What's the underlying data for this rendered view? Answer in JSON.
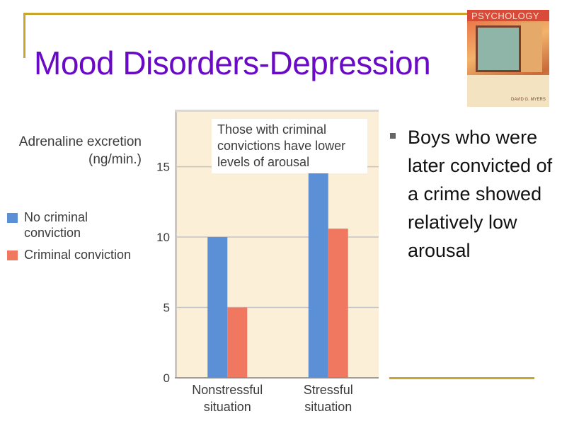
{
  "slide": {
    "title": "Mood Disorders-Depression",
    "book_cover_title": "PSYCHOLOGY",
    "book_cover_author": "DAVID G. MYERS",
    "bullet_text": "Boys who were later convicted of a crime showed relatively low arousal",
    "colors": {
      "title": "#6a0ac7",
      "frame": "#c9a72a"
    }
  },
  "chart_data": {
    "type": "bar",
    "title": "",
    "ylabel": "Adrenaline excretion (ng/min.)",
    "xlabel": "",
    "categories": [
      "Nonstressful situation",
      "Stressful situation"
    ],
    "series": [
      {
        "name": "No criminal conviction",
        "values": [
          10,
          15
        ],
        "color": "#5b8fd6"
      },
      {
        "name": "Criminal conviction",
        "values": [
          5,
          10.6
        ],
        "color": "#f07860"
      }
    ],
    "ylim": [
      0,
      19
    ],
    "yticks": [
      0,
      5,
      10,
      15
    ],
    "grid": true,
    "legend_position": "left",
    "annotation": "Those with criminal convictions have lower levels of arousal",
    "plot_background": "#fbefd8"
  }
}
